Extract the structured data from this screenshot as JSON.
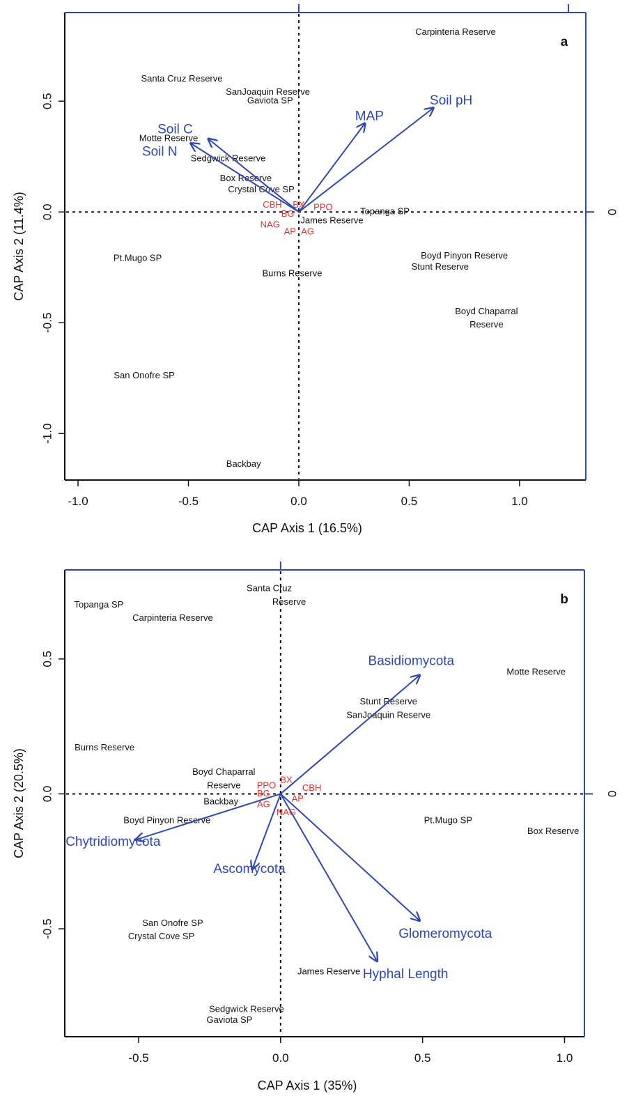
{
  "colors": {
    "vector": "#2f47b3",
    "enzyme": "#e8302a",
    "frame": "#2f47b3",
    "text": "#111111"
  },
  "chart_data": [
    {
      "type": "scatter",
      "panel_label": "a",
      "xlabel": "CAP Axis 1 (16.5%)",
      "ylabel": "CAP Axis 2 (11.4%)",
      "xlim": [
        -1.06,
        1.3
      ],
      "ylim": [
        -1.21,
        0.9
      ],
      "xticks": [
        -1.0,
        -0.5,
        0.0,
        0.5,
        1.0
      ],
      "xtick_labels": [
        "-1.0",
        "-0.5",
        "0.0",
        "0.5",
        "1.0"
      ],
      "yticks": [
        -1.0,
        -0.5,
        0.0,
        0.5
      ],
      "ytick_labels": [
        "-1.0",
        "-0.5",
        "0.0",
        "0.5"
      ],
      "right_axis_label": "0",
      "grid": false,
      "origin_lines": "dashed",
      "sites": [
        {
          "label": "Carpinteria Reserve",
          "x": 0.71,
          "y": 0.81
        },
        {
          "label": "Santa Cruz Reserve",
          "x": -0.53,
          "y": 0.6
        },
        {
          "label": "SanJoaquin Reserve",
          "x": -0.14,
          "y": 0.54
        },
        {
          "label": "Gaviota SP",
          "x": -0.13,
          "y": 0.5
        },
        {
          "label": "Motte Reserve",
          "x": -0.59,
          "y": 0.33
        },
        {
          "label": "Sedgwick Reserve",
          "x": -0.32,
          "y": 0.24
        },
        {
          "label": "Box Reserve",
          "x": -0.24,
          "y": 0.15
        },
        {
          "label": "Crystal Cove SP",
          "x": -0.17,
          "y": 0.1
        },
        {
          "label": "James Reserve",
          "x": 0.15,
          "y": -0.04
        },
        {
          "label": "Topanga SP",
          "x": 0.39,
          "y": 0.0
        },
        {
          "label": "Pt.Mugo SP",
          "x": -0.73,
          "y": -0.21
        },
        {
          "label": "Burns Reserve",
          "x": -0.03,
          "y": -0.28
        },
        {
          "label": "Boyd Pinyon Reserve",
          "x": 0.75,
          "y": -0.2
        },
        {
          "label": "Stunt Reserve",
          "x": 0.64,
          "y": -0.25
        },
        {
          "label": "Boyd Chaparral",
          "x": 0.85,
          "y": -0.45
        },
        {
          "label": "Reserve",
          "x": 0.85,
          "y": -0.51
        },
        {
          "label": "San Onofre SP",
          "x": -0.7,
          "y": -0.74
        },
        {
          "label": "Backbay",
          "x": -0.25,
          "y": -1.14
        }
      ],
      "enzymes": [
        {
          "label": "CBH",
          "x": -0.12,
          "y": 0.03
        },
        {
          "label": "BX",
          "x": 0.0,
          "y": 0.03
        },
        {
          "label": "PPO",
          "x": 0.11,
          "y": 0.02
        },
        {
          "label": "BG",
          "x": -0.05,
          "y": -0.01
        },
        {
          "label": "NAG",
          "x": -0.13,
          "y": -0.06
        },
        {
          "label": "AP",
          "x": -0.04,
          "y": -0.09
        },
        {
          "label": "AG",
          "x": 0.04,
          "y": -0.09
        }
      ],
      "vectors": [
        {
          "label": "Soil pH",
          "x": 0.61,
          "y": 0.47,
          "label_x": 0.69,
          "label_y": 0.5
        },
        {
          "label": "MAP",
          "x": 0.3,
          "y": 0.4,
          "label_x": 0.32,
          "label_y": 0.43
        },
        {
          "label": "Soil C",
          "x": -0.41,
          "y": 0.33,
          "label_x": -0.56,
          "label_y": 0.37
        },
        {
          "label": "Soil N",
          "x": -0.49,
          "y": 0.31,
          "label_x": -0.63,
          "label_y": 0.27
        }
      ]
    },
    {
      "type": "scatter",
      "panel_label": "b",
      "xlabel": "CAP Axis 1 (35%)",
      "ylabel": "CAP Axis 2 (20.5%)",
      "xlim": [
        -0.76,
        1.07
      ],
      "ylim": [
        -0.9,
        0.83
      ],
      "xticks": [
        -0.5,
        0.0,
        0.5,
        1.0
      ],
      "xtick_labels": [
        "-0.5",
        "0.0",
        "0.5",
        "1.0"
      ],
      "yticks": [
        -0.5,
        0.0,
        0.5
      ],
      "ytick_labels": [
        "-0.5",
        "0.0",
        "0.5"
      ],
      "right_axis_label": "0",
      "grid": false,
      "origin_lines": "dashed",
      "sites": [
        {
          "label": "Santa Cruz",
          "x": -0.04,
          "y": 0.76
        },
        {
          "label": "Reserve",
          "x": 0.03,
          "y": 0.71
        },
        {
          "label": "Topanga SP",
          "x": -0.64,
          "y": 0.7
        },
        {
          "label": "Carpinteria Reserve",
          "x": -0.38,
          "y": 0.65
        },
        {
          "label": "Motte Reserve",
          "x": 0.9,
          "y": 0.45
        },
        {
          "label": "Stunt Reserve",
          "x": 0.38,
          "y": 0.34
        },
        {
          "label": "SanJoaquin Reserve",
          "x": 0.38,
          "y": 0.29
        },
        {
          "label": "Burns Reserve",
          "x": -0.62,
          "y": 0.17
        },
        {
          "label": "Boyd Chaparral",
          "x": -0.2,
          "y": 0.08
        },
        {
          "label": "Reserve",
          "x": -0.2,
          "y": 0.03
        },
        {
          "label": "Backbay",
          "x": -0.21,
          "y": -0.03
        },
        {
          "label": "Boyd Pinyon Reserve",
          "x": -0.4,
          "y": -0.1
        },
        {
          "label": "Pt.Mugo SP",
          "x": 0.59,
          "y": -0.1
        },
        {
          "label": "Box Reserve",
          "x": 0.96,
          "y": -0.14
        },
        {
          "label": "San Onofre SP",
          "x": -0.38,
          "y": -0.48
        },
        {
          "label": "Crystal Cove SP",
          "x": -0.42,
          "y": -0.53
        },
        {
          "label": "James Reserve",
          "x": 0.17,
          "y": -0.66
        },
        {
          "label": "Sedgwick Reserve",
          "x": -0.12,
          "y": -0.8
        },
        {
          "label": "Gaviota SP",
          "x": -0.18,
          "y": -0.84
        }
      ],
      "enzymes": [
        {
          "label": "BX",
          "x": 0.02,
          "y": 0.05
        },
        {
          "label": "PPO",
          "x": -0.05,
          "y": 0.03
        },
        {
          "label": "CBH",
          "x": 0.11,
          "y": 0.02
        },
        {
          "label": "BG",
          "x": -0.06,
          "y": 0.0
        },
        {
          "label": "AP",
          "x": 0.06,
          "y": -0.02
        },
        {
          "label": "AG",
          "x": -0.06,
          "y": -0.04
        },
        {
          "label": "NAG",
          "x": 0.02,
          "y": -0.07
        }
      ],
      "vectors": [
        {
          "label": "Basidiomycota",
          "x": 0.49,
          "y": 0.44,
          "label_x": 0.46,
          "label_y": 0.49
        },
        {
          "label": "Chytridiomycota",
          "x": -0.51,
          "y": -0.17,
          "label_x": -0.59,
          "label_y": -0.18
        },
        {
          "label": "Ascomycota",
          "x": -0.1,
          "y": -0.28,
          "label_x": -0.11,
          "label_y": -0.28
        },
        {
          "label": "Glomeromycota",
          "x": 0.49,
          "y": -0.47,
          "label_x": 0.58,
          "label_y": -0.52
        },
        {
          "label": "Hyphal Length",
          "x": 0.34,
          "y": -0.62,
          "label_x": 0.44,
          "label_y": -0.67
        }
      ]
    }
  ]
}
